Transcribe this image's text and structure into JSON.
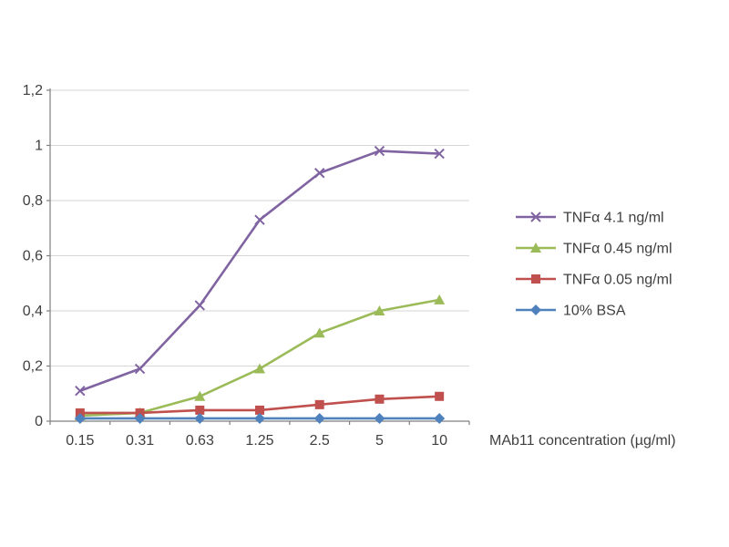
{
  "page": {
    "background": "#ffffff"
  },
  "chart_data": {
    "type": "line",
    "title": "",
    "xlabel": "MAb11 concentration (µg/ml)",
    "ylabel": "",
    "categories": [
      "0.15",
      "0.31",
      "0.63",
      "1.25",
      "2.5",
      "5",
      "10"
    ],
    "series": [
      {
        "name": "TNFα 4.1 ng/ml",
        "color": "#8064A2",
        "marker": "x",
        "values": [
          0.11,
          0.19,
          0.42,
          0.73,
          0.9,
          0.98,
          0.97
        ]
      },
      {
        "name": "TNFα 0.45 ng/ml",
        "color": "#9BBB59",
        "marker": "triangle",
        "values": [
          0.02,
          0.03,
          0.09,
          0.19,
          0.32,
          0.4,
          0.44
        ]
      },
      {
        "name": "TNFα 0.05 ng/ml",
        "color": "#C0504D",
        "marker": "square",
        "values": [
          0.03,
          0.03,
          0.04,
          0.04,
          0.06,
          0.08,
          0.09
        ]
      },
      {
        "name": "10% BSA",
        "color": "#4F81BD",
        "marker": "diamond",
        "values": [
          0.01,
          0.01,
          0.01,
          0.01,
          0.01,
          0.01,
          0.01
        ]
      }
    ],
    "ylim": [
      0,
      1.2
    ],
    "y_tick_step": 0.2,
    "y_tick_labels": [
      "0",
      "0,2",
      "0,4",
      "0,6",
      "0,8",
      "1",
      "1,2"
    ],
    "grid": true,
    "legend_position": "right",
    "grid_color": "#d6d6d6",
    "axis_color": "#7f7f7f",
    "text_color": "#3f3f3f"
  }
}
